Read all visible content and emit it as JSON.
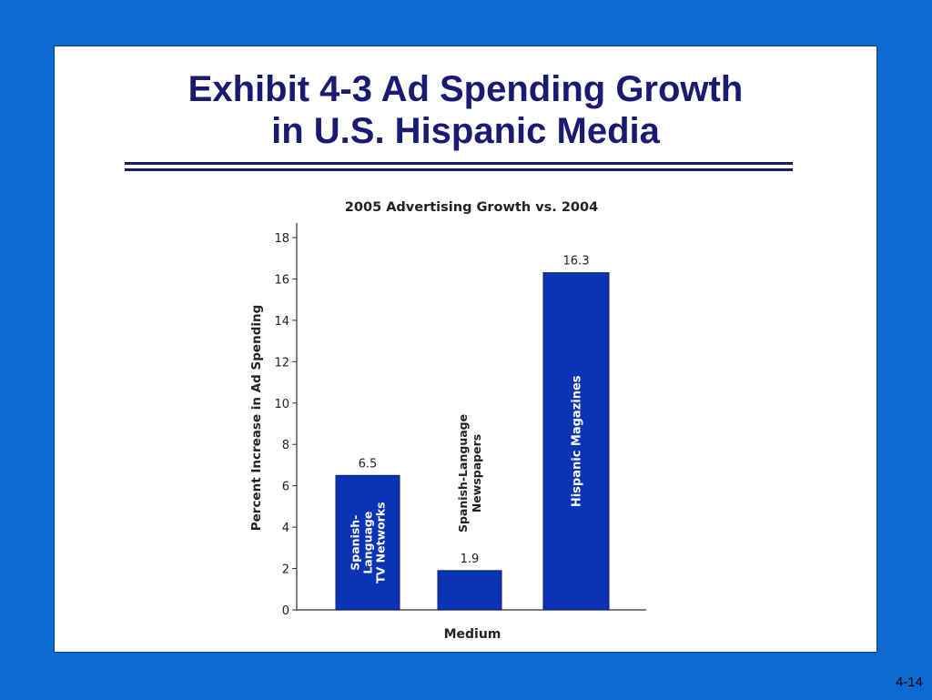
{
  "slide": {
    "title_line1": "Exhibit 4-3 Ad Spending Growth",
    "title_line2": "in U.S. Hispanic Media",
    "page_number": "4-14"
  },
  "colors": {
    "background": "#0b6bd0",
    "panel": "#ffffff",
    "title": "#1a1a72",
    "bar_fill": "#0a34b5",
    "bar_stroke": "#0a1f6e"
  },
  "chart_data": {
    "type": "bar",
    "title": "2005 Advertising Growth vs. 2004",
    "xlabel": "Medium",
    "ylabel": "Percent Increase in Ad Spending",
    "ylim": [
      0,
      18
    ],
    "yticks": [
      0,
      2,
      4,
      6,
      8,
      10,
      12,
      14,
      16,
      18
    ],
    "ytick_labels": [
      "0",
      "2",
      "4",
      "6",
      "8",
      "10",
      "12",
      "14",
      "16",
      "18"
    ],
    "grid": false,
    "legend": "none",
    "categories": [
      [
        "Spanish-",
        "Language",
        "TV Networks"
      ],
      [
        "Spanish-Language",
        "Newspapers"
      ],
      [
        "Hispanic Magazines"
      ]
    ],
    "values": [
      6.5,
      1.9,
      16.3
    ],
    "value_labels": [
      "6.5",
      "1.9",
      "16.3"
    ]
  }
}
